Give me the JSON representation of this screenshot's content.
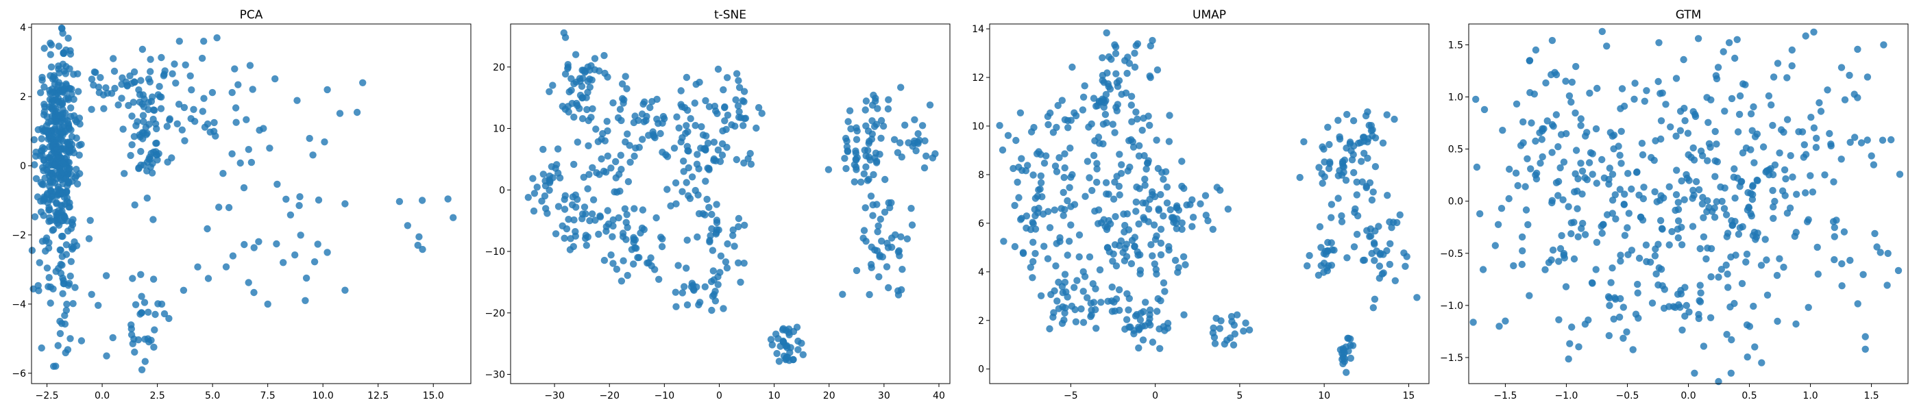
{
  "colors": {
    "point": "#1f77b4",
    "axis": "#000000",
    "background": "#ffffff"
  },
  "chart_data": [
    {
      "type": "scatter",
      "title": "PCA",
      "xlabel": "",
      "ylabel": "",
      "xlim": [
        -3.2,
        16.7
      ],
      "ylim": [
        -6.3,
        4.1
      ],
      "xticks": [
        -2.5,
        0.0,
        2.5,
        5.0,
        7.5,
        10.0,
        12.5,
        15.0
      ],
      "xtick_labels": [
        "−2.5",
        "0.0",
        "2.5",
        "5.0",
        "7.5",
        "10.0",
        "12.5",
        "15.0"
      ],
      "yticks": [
        -6,
        -4,
        -2,
        0,
        2,
        4
      ],
      "ytick_labels": [
        "−6",
        "−4",
        "−2",
        "0",
        "2",
        "4"
      ],
      "clusters": [
        {
          "cx": -2.0,
          "cy": 0.4,
          "sx": 0.45,
          "sy": 1.4,
          "n": 420
        },
        {
          "cx": -1.6,
          "cy": -3.5,
          "sx": 0.7,
          "sy": 1.1,
          "n": 40
        },
        {
          "cx": 0.5,
          "cy": 2.3,
          "sx": 1.0,
          "sy": 0.5,
          "n": 40
        },
        {
          "cx": 2.0,
          "cy": 0.8,
          "sx": 0.6,
          "sy": 0.8,
          "n": 60
        },
        {
          "cx": 3.5,
          "cy": 2.0,
          "sx": 1.2,
          "sy": 0.8,
          "n": 30
        },
        {
          "cx": 2.0,
          "cy": -4.6,
          "sx": 0.6,
          "sy": 0.7,
          "n": 30
        },
        {
          "cx": 5.5,
          "cy": 0.5,
          "sx": 1.4,
          "sy": 1.4,
          "n": 28
        },
        {
          "cx": 5.0,
          "cy": -2.5,
          "sx": 1.3,
          "sy": 0.8,
          "n": 10
        },
        {
          "cx": 9.5,
          "cy": -1.5,
          "sx": 0.8,
          "sy": 1.2,
          "n": 12
        },
        {
          "cx": 10.5,
          "cy": 1.5,
          "sx": 0.8,
          "sy": 0.8,
          "n": 6
        },
        {
          "cx": 14.0,
          "cy": -1.6,
          "sx": 1.2,
          "sy": 0.5,
          "n": 5
        }
      ],
      "points": [
        [
          -2.0,
          -5.2
        ],
        [
          -2.2,
          -5.8
        ],
        [
          0.2,
          -5.5
        ],
        [
          1.8,
          -5.9
        ],
        [
          2.7,
          -4.0
        ],
        [
          7.5,
          -4.0
        ],
        [
          8.2,
          -2.8
        ],
        [
          9.2,
          -3.9
        ],
        [
          11.0,
          -3.6
        ],
        [
          11.8,
          2.4
        ],
        [
          11.0,
          -1.1
        ],
        [
          14.5,
          -1.0
        ],
        [
          15.9,
          -1.5
        ],
        [
          14.3,
          -2.3
        ],
        [
          6.0,
          2.8
        ],
        [
          6.7,
          2.9
        ],
        [
          5.2,
          3.7
        ],
        [
          3.5,
          3.6
        ],
        [
          0.5,
          3.1
        ],
        [
          10.2,
          2.2
        ]
      ]
    },
    {
      "type": "scatter",
      "title": "t-SNE",
      "xlabel": "",
      "ylabel": "",
      "xlim": [
        -38,
        42
      ],
      "ylim": [
        -31.5,
        27
      ],
      "xticks": [
        -30,
        -20,
        -10,
        0,
        10,
        20,
        30,
        40
      ],
      "xtick_labels": [
        "−30",
        "−20",
        "−10",
        "0",
        "10",
        "20",
        "30",
        "40"
      ],
      "yticks": [
        -30,
        -20,
        -10,
        0,
        10,
        20
      ],
      "ytick_labels": [
        "−30",
        "−20",
        "−10",
        "0",
        "10",
        "20"
      ],
      "clusters": [
        {
          "cx": -25,
          "cy": 17,
          "sx": 2.5,
          "sy": 4.0,
          "n": 55
        },
        {
          "cx": -31,
          "cy": 0,
          "sx": 2.5,
          "sy": 2.5,
          "n": 30
        },
        {
          "cx": -24,
          "cy": -6,
          "sx": 3.0,
          "sy": 3.0,
          "n": 35
        },
        {
          "cx": -20,
          "cy": 3,
          "sx": 2.5,
          "sy": 4.0,
          "n": 35
        },
        {
          "cx": -14,
          "cy": -9,
          "sx": 3.0,
          "sy": 3.5,
          "n": 40
        },
        {
          "cx": -13,
          "cy": 12,
          "sx": 4.0,
          "sy": 3.5,
          "n": 45
        },
        {
          "cx": -3,
          "cy": 7,
          "sx": 4.0,
          "sy": 5.0,
          "n": 70
        },
        {
          "cx": 3,
          "cy": 13,
          "sx": 2.5,
          "sy": 3.0,
          "n": 25
        },
        {
          "cx": -1,
          "cy": -8,
          "sx": 3.0,
          "sy": 4.0,
          "n": 35
        },
        {
          "cx": -3,
          "cy": -17,
          "sx": 2.5,
          "sy": 1.8,
          "n": 25
        },
        {
          "cx": 12,
          "cy": -25.5,
          "sx": 1.6,
          "sy": 1.6,
          "n": 35
        },
        {
          "cx": 27,
          "cy": 8,
          "sx": 2.5,
          "sy": 4.5,
          "n": 55
        },
        {
          "cx": 31,
          "cy": -8,
          "sx": 3.0,
          "sy": 4.5,
          "n": 45
        },
        {
          "cx": 36,
          "cy": 8,
          "sx": 1.8,
          "sy": 1.8,
          "n": 20
        },
        {
          "cx": 23,
          "cy": 3,
          "sx": 2.0,
          "sy": 2.5,
          "n": 10
        }
      ],
      "points": []
    },
    {
      "type": "scatter",
      "title": "UMAP",
      "xlabel": "",
      "ylabel": "",
      "xlim": [
        -9.8,
        16.2
      ],
      "ylim": [
        -0.6,
        14.2
      ],
      "xticks": [
        -5,
        0,
        5,
        10,
        15
      ],
      "xtick_labels": [
        "−5",
        "0",
        "5",
        "10",
        "15"
      ],
      "yticks": [
        0,
        2,
        4,
        6,
        8,
        10,
        12,
        14
      ],
      "ytick_labels": [
        "0",
        "2",
        "4",
        "6",
        "8",
        "10",
        "12",
        "14"
      ],
      "clusters": [
        {
          "cx": -6.5,
          "cy": 8.5,
          "sx": 1.4,
          "sy": 1.5,
          "n": 50
        },
        {
          "cx": -7.5,
          "cy": 6.5,
          "sx": 0.8,
          "sy": 1.2,
          "n": 25
        },
        {
          "cx": -5.5,
          "cy": 5.0,
          "sx": 1.5,
          "sy": 1.5,
          "n": 45
        },
        {
          "cx": -4.5,
          "cy": 2.5,
          "sx": 1.0,
          "sy": 0.5,
          "n": 30
        },
        {
          "cx": -3.0,
          "cy": 10.5,
          "sx": 0.9,
          "sy": 1.5,
          "n": 40
        },
        {
          "cx": -1.5,
          "cy": 8.0,
          "sx": 1.5,
          "sy": 1.8,
          "n": 60
        },
        {
          "cx": -1.0,
          "cy": 5.0,
          "sx": 1.5,
          "sy": 1.8,
          "n": 60
        },
        {
          "cx": -1.0,
          "cy": 2.0,
          "sx": 1.2,
          "sy": 0.6,
          "n": 40
        },
        {
          "cx": 1.5,
          "cy": 6.5,
          "sx": 1.3,
          "sy": 1.0,
          "n": 35
        },
        {
          "cx": -1.5,
          "cy": 12.5,
          "sx": 1.0,
          "sy": 0.8,
          "n": 25
        },
        {
          "cx": 4.3,
          "cy": 1.7,
          "sx": 0.8,
          "sy": 0.3,
          "n": 20
        },
        {
          "cx": 11.0,
          "cy": 8.5,
          "sx": 1.2,
          "sy": 1.2,
          "n": 60
        },
        {
          "cx": 12.5,
          "cy": 9.8,
          "sx": 0.8,
          "sy": 0.4,
          "n": 15
        },
        {
          "cx": 13.5,
          "cy": 5.0,
          "sx": 1.0,
          "sy": 1.0,
          "n": 40
        },
        {
          "cx": 10.0,
          "cy": 4.8,
          "sx": 0.4,
          "sy": 0.4,
          "n": 20
        },
        {
          "cx": 11.2,
          "cy": 0.6,
          "sx": 0.25,
          "sy": 0.4,
          "n": 20
        }
      ],
      "points": []
    },
    {
      "type": "scatter",
      "title": "GTM",
      "xlabel": "",
      "ylabel": "",
      "xlim": [
        -1.8,
        1.8
      ],
      "ylim": [
        -1.75,
        1.7
      ],
      "xticks": [
        -1.5,
        -1.0,
        -0.5,
        0.0,
        0.5,
        1.0,
        1.5
      ],
      "xtick_labels": [
        "−1.5",
        "−1.0",
        "−0.5",
        "0.0",
        "0.5",
        "1.0",
        "1.5"
      ],
      "yticks": [
        -1.5,
        -1.0,
        -0.5,
        0.0,
        0.5,
        1.0,
        1.5
      ],
      "ytick_labels": [
        "−1.5",
        "−1.0",
        "−0.5",
        "0.0",
        "0.5",
        "1.0",
        "1.5"
      ],
      "clusters": [
        {
          "cx": 0.0,
          "cy": 0.05,
          "sx": 0.85,
          "sy": 0.7,
          "n": 440
        },
        {
          "cx": -1.2,
          "cy": 0.5,
          "sx": 0.25,
          "sy": 0.5,
          "n": 40
        },
        {
          "cx": 1.25,
          "cy": 0.8,
          "sx": 0.25,
          "sy": 0.4,
          "n": 25
        },
        {
          "cx": -0.3,
          "cy": -1.1,
          "sx": 0.5,
          "sy": 0.3,
          "n": 30
        }
      ],
      "points": [
        [
          -1.25,
          1.45
        ],
        [
          -1.3,
          1.35
        ],
        [
          1.6,
          1.5
        ],
        [
          0.05,
          -1.65
        ],
        [
          0.35,
          -1.65
        ],
        [
          0.6,
          -1.55
        ],
        [
          1.45,
          -1.3
        ],
        [
          1.45,
          -1.42
        ],
        [
          -1.5,
          -1.15
        ],
        [
          -1.55,
          -1.2
        ],
        [
          0.85,
          1.45
        ],
        [
          0.4,
          1.55
        ]
      ]
    }
  ]
}
